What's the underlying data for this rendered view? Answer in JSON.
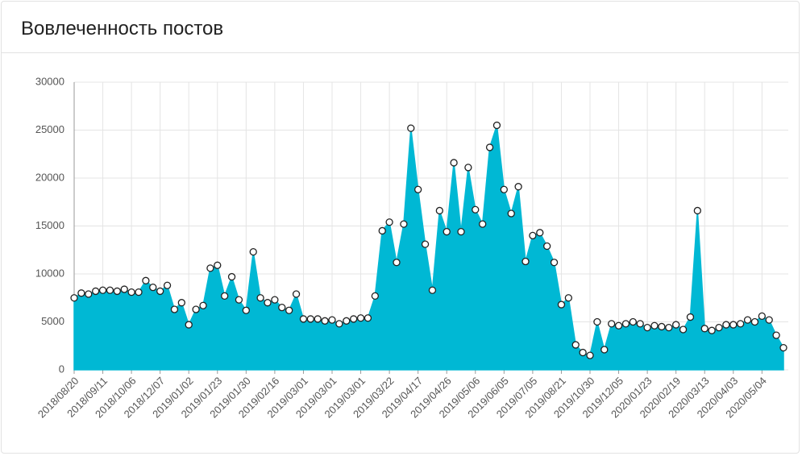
{
  "chart_data": {
    "type": "area",
    "title": "Вовлеченность постов",
    "categories": [
      "2018/08/20",
      null,
      null,
      null,
      "2018/09/11",
      null,
      null,
      null,
      "2018/10/06",
      null,
      null,
      null,
      "2018/12/07",
      null,
      null,
      null,
      "2019/01/02",
      null,
      null,
      null,
      "2019/01/23",
      null,
      null,
      null,
      "2019/01/30",
      null,
      null,
      null,
      "2019/02/16",
      null,
      null,
      null,
      "2019/03/01",
      null,
      null,
      null,
      "2019/03/01",
      null,
      null,
      null,
      "2019/03/01",
      null,
      null,
      null,
      "2019/03/22",
      null,
      null,
      null,
      "2019/04/17",
      null,
      null,
      null,
      "2019/04/26",
      null,
      null,
      null,
      "2019/05/06",
      null,
      null,
      null,
      "2019/06/05",
      null,
      null,
      null,
      "2019/07/05",
      null,
      null,
      null,
      "2019/08/21",
      null,
      null,
      null,
      "2019/10/30",
      null,
      null,
      null,
      "2019/12/05",
      null,
      null,
      null,
      "2020/01/23",
      null,
      null,
      null,
      "2020/02/19",
      null,
      null,
      null,
      "2020/03/13",
      null,
      null,
      null,
      "2020/04/03",
      null,
      null,
      null,
      "2020/05/04",
      null,
      null,
      null
    ],
    "values": [
      7500,
      8000,
      7900,
      8200,
      8300,
      8300,
      8200,
      8400,
      8100,
      8100,
      9300,
      8600,
      8200,
      8800,
      6300,
      7000,
      4700,
      6300,
      6700,
      10600,
      10900,
      7700,
      9700,
      7300,
      6200,
      12300,
      7500,
      7000,
      7300,
      6500,
      6200,
      7900,
      5300,
      5300,
      5300,
      5100,
      5200,
      4800,
      5100,
      5300,
      5400,
      5400,
      7700,
      14500,
      15400,
      11200,
      15200,
      25200,
      18800,
      13100,
      8300,
      16600,
      14400,
      21600,
      14400,
      21100,
      16700,
      15200,
      23200,
      25500,
      18800,
      16300,
      19100,
      11300,
      14000,
      14300,
      12900,
      11200,
      6800,
      7500,
      2600,
      1800,
      1500,
      5000,
      2100,
      4800,
      4600,
      4800,
      5000,
      4800,
      4400,
      4600,
      4500,
      4400,
      4700,
      4200,
      5500,
      16600,
      4300,
      4100,
      4400,
      4700,
      4700,
      4800,
      5200,
      5000,
      5600,
      5200,
      3600,
      2300
    ],
    "color": "#00b8d4",
    "ylim": [
      0,
      30000
    ],
    "yticks": [
      0,
      5000,
      10000,
      15000,
      20000,
      25000,
      30000
    ],
    "grid": true
  }
}
